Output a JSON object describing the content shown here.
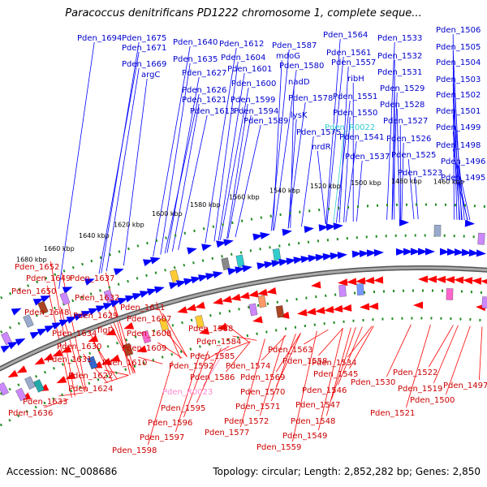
{
  "title": "Paracoccus denitrificans PD1222 chromosome 1, complete seque...",
  "footer": {
    "accession": "Accession: NC_008686",
    "summary": "Topology: circular; Length: 2,852,282 bp; Genes: 2,850"
  },
  "colors": {
    "forward_strand": "#0000ff",
    "reverse_strand": "#ff0000",
    "top_label": "#0000cc",
    "bottom_label": "#cc0000",
    "rna_top": "#33cccc",
    "rna_bottom": "#ff88cc",
    "backbone": "#888888",
    "tick_dots": "#228b22"
  },
  "ticks": [
    "1680 kbp",
    "1660 kbp",
    "1640 kbp",
    "1620 kbp",
    "1600 kbp",
    "1580 kbp",
    "1560 kbp",
    "1540 kbp",
    "1520 kbp",
    "1500 kbp",
    "1480 kbp",
    "1460 kbp"
  ],
  "top_labels": [
    "Pden_1694",
    "Pden_1675",
    "Pden_1671",
    "Pden_1669",
    "argC",
    "Pden_1640",
    "Pden_1635",
    "Pden_1627",
    "Pden_1626",
    "Pden_1621",
    "Pden_1613",
    "Pden_1612",
    "Pden_1604",
    "Pden_1601",
    "Pden_1600",
    "Pden_1599",
    "Pden_1594",
    "Pden_1589",
    "Pden_1587",
    "mdoG",
    "Pden_1580",
    "nadD",
    "Pden_1578",
    "lysK",
    "Pden_1575",
    "Pden_1564",
    "Pden_1561",
    "Pden_1557",
    "ribH",
    "Pden_1551",
    "Pden_1550",
    "Pden_R0022",
    "Pden_1541",
    "nrdR",
    "Pden_1537",
    "Pden_1533",
    "Pden_1532",
    "Pden_1531",
    "Pden_1529",
    "Pden_1528",
    "Pden_1527",
    "Pden_1526",
    "Pden_1525",
    "Pden_1523",
    "Pden_1506",
    "Pden_1505",
    "Pden_1504",
    "Pden_1503",
    "Pden_1502",
    "Pden_1501",
    "Pden_1499",
    "Pden_1498",
    "Pden_1496",
    "Pden_1495"
  ],
  "bottom_labels": [
    "Pden_1652",
    "Pden_1649",
    "Pden_1650",
    "Pden_1648",
    "Pden_1637",
    "Pden_1632",
    "Pden_1629",
    "Pden_1634",
    "Pden_1630",
    "Pden_1631",
    "Pden_1622",
    "Pden_1624",
    "Pden_1633",
    "Pden_1636",
    "Pden_1611",
    "Pden_1607",
    "flgD",
    "Pden_1608",
    "Pden_1609",
    "Pden_1610",
    "Pden_1588",
    "Pden_1584",
    "Pden_1585",
    "Pden_1592",
    "Pden_1586",
    "Pden_R0023",
    "Pden_1595",
    "Pden_1596",
    "Pden_1597",
    "Pden_1598",
    "Pden_1574",
    "Pden_1569",
    "Pden_1570",
    "Pden_1571",
    "Pden_1572",
    "Pden_1577",
    "Pden_1563",
    "Pden_1558",
    "Pden_1545",
    "Pden_1546",
    "Pden_1547",
    "Pden_1548",
    "Pden_1549",
    "Pden_1559",
    "Pden_1534",
    "Pden_1530",
    "Pden_1522",
    "Pden_1519",
    "Pden_1521",
    "Pden_1497",
    "Pden_1500"
  ]
}
